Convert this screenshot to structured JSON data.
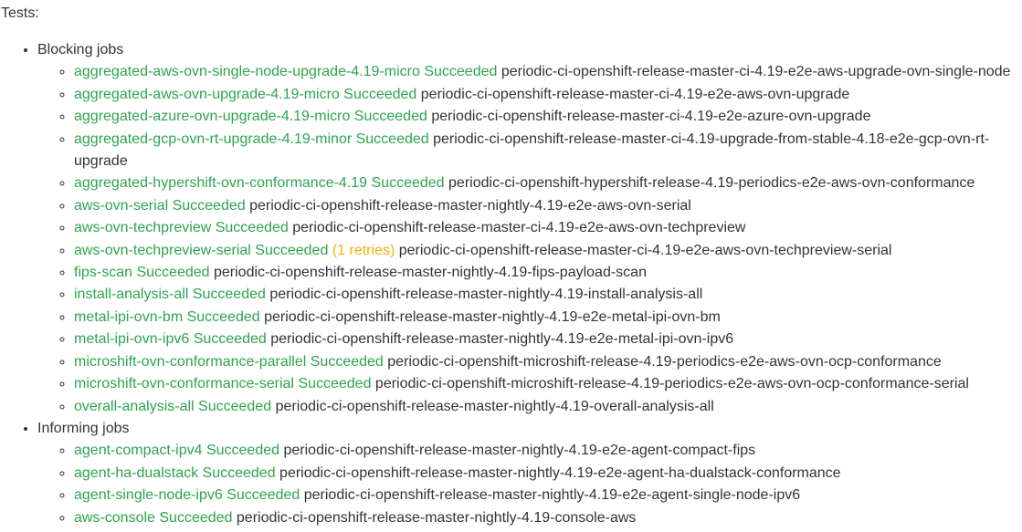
{
  "heading": "Tests:",
  "colors": {
    "succeeded": "#2ea44f",
    "retries": "#f0b400",
    "text": "#333333"
  },
  "groups": [
    {
      "label": "Blocking jobs",
      "jobs": [
        {
          "link": "aggregated-aws-ovn-single-node-upgrade-4.19-micro Succeeded",
          "retries": "",
          "name": "periodic-ci-openshift-release-master-ci-4.19-e2e-aws-upgrade-ovn-single-node"
        },
        {
          "link": "aggregated-aws-ovn-upgrade-4.19-micro Succeeded",
          "retries": "",
          "name": "periodic-ci-openshift-release-master-ci-4.19-e2e-aws-ovn-upgrade"
        },
        {
          "link": "aggregated-azure-ovn-upgrade-4.19-micro Succeeded",
          "retries": "",
          "name": "periodic-ci-openshift-release-master-ci-4.19-e2e-azure-ovn-upgrade"
        },
        {
          "link": "aggregated-gcp-ovn-rt-upgrade-4.19-minor Succeeded",
          "retries": "",
          "name": "periodic-ci-openshift-release-master-ci-4.19-upgrade-from-stable-4.18-e2e-gcp-ovn-rt-upgrade"
        },
        {
          "link": "aggregated-hypershift-ovn-conformance-4.19 Succeeded",
          "retries": "",
          "name": "periodic-ci-openshift-hypershift-release-4.19-periodics-e2e-aws-ovn-conformance"
        },
        {
          "link": "aws-ovn-serial Succeeded",
          "retries": "",
          "name": "periodic-ci-openshift-release-master-nightly-4.19-e2e-aws-ovn-serial"
        },
        {
          "link": "aws-ovn-techpreview Succeeded",
          "retries": "",
          "name": "periodic-ci-openshift-release-master-ci-4.19-e2e-aws-ovn-techpreview"
        },
        {
          "link": "aws-ovn-techpreview-serial Succeeded",
          "retries": "(1 retries)",
          "name": "periodic-ci-openshift-release-master-ci-4.19-e2e-aws-ovn-techpreview-serial"
        },
        {
          "link": "fips-scan Succeeded",
          "retries": "",
          "name": "periodic-ci-openshift-release-master-nightly-4.19-fips-payload-scan"
        },
        {
          "link": "install-analysis-all Succeeded",
          "retries": "",
          "name": "periodic-ci-openshift-release-master-nightly-4.19-install-analysis-all"
        },
        {
          "link": "metal-ipi-ovn-bm Succeeded",
          "retries": "",
          "name": "periodic-ci-openshift-release-master-nightly-4.19-e2e-metal-ipi-ovn-bm"
        },
        {
          "link": "metal-ipi-ovn-ipv6 Succeeded",
          "retries": "",
          "name": "periodic-ci-openshift-release-master-nightly-4.19-e2e-metal-ipi-ovn-ipv6"
        },
        {
          "link": "microshift-ovn-conformance-parallel Succeeded",
          "retries": "",
          "name": "periodic-ci-openshift-microshift-release-4.19-periodics-e2e-aws-ovn-ocp-conformance"
        },
        {
          "link": "microshift-ovn-conformance-serial Succeeded",
          "retries": "",
          "name": "periodic-ci-openshift-microshift-release-4.19-periodics-e2e-aws-ovn-ocp-conformance-serial"
        },
        {
          "link": "overall-analysis-all Succeeded",
          "retries": "",
          "name": "periodic-ci-openshift-release-master-nightly-4.19-overall-analysis-all"
        }
      ]
    },
    {
      "label": "Informing jobs",
      "jobs": [
        {
          "link": "agent-compact-ipv4 Succeeded",
          "retries": "",
          "name": "periodic-ci-openshift-release-master-nightly-4.19-e2e-agent-compact-fips"
        },
        {
          "link": "agent-ha-dualstack Succeeded",
          "retries": "",
          "name": "periodic-ci-openshift-release-master-nightly-4.19-e2e-agent-ha-dualstack-conformance"
        },
        {
          "link": "agent-single-node-ipv6 Succeeded",
          "retries": "",
          "name": "periodic-ci-openshift-release-master-nightly-4.19-e2e-agent-single-node-ipv6"
        },
        {
          "link": "aws-console Succeeded",
          "retries": "",
          "name": "periodic-ci-openshift-release-master-nightly-4.19-console-aws"
        }
      ]
    }
  ]
}
